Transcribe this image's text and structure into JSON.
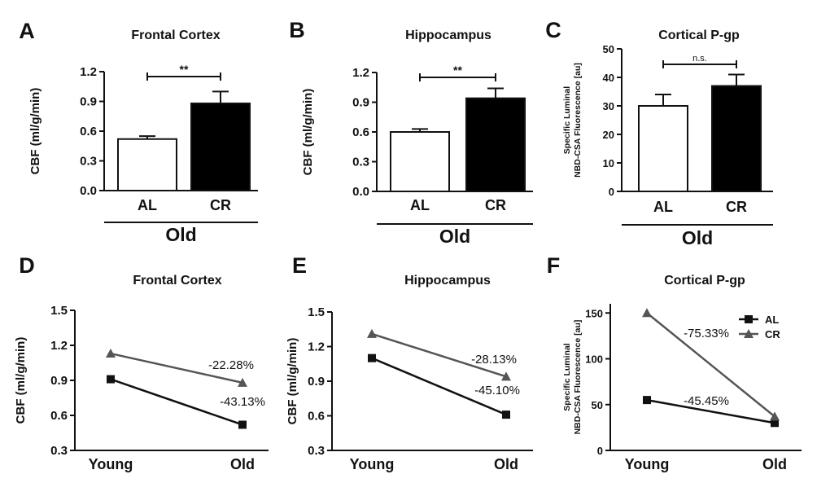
{
  "figure": {
    "panel_labels": [
      "A",
      "B",
      "C",
      "D",
      "E",
      "F"
    ]
  },
  "chart_data": [
    {
      "panel": "A",
      "type": "bar",
      "title": "Frontal Cortex",
      "xlabel": "",
      "ylabel": "CBF (ml/g/min)",
      "ylim": [
        0,
        1.2
      ],
      "yticks": [
        "0.0",
        "0.3",
        "0.6",
        "0.9",
        "1.2"
      ],
      "categories": [
        "AL",
        "CR"
      ],
      "values": [
        0.52,
        0.88
      ],
      "errors": [
        0.03,
        0.12
      ],
      "colors": [
        "#ffffff",
        "#000000"
      ],
      "group_label": "Old",
      "significance": "**"
    },
    {
      "panel": "B",
      "type": "bar",
      "title": "Hippocampus",
      "xlabel": "",
      "ylabel": "CBF (ml/g/min)",
      "ylim": [
        0,
        1.2
      ],
      "yticks": [
        "0.0",
        "0.3",
        "0.6",
        "0.9",
        "1.2"
      ],
      "categories": [
        "AL",
        "CR"
      ],
      "values": [
        0.6,
        0.94
      ],
      "errors": [
        0.03,
        0.1
      ],
      "colors": [
        "#ffffff",
        "#000000"
      ],
      "group_label": "Old",
      "significance": "**"
    },
    {
      "panel": "C",
      "type": "bar",
      "title": "Cortical P-gp",
      "xlabel": "",
      "ylabel_lines": [
        "Specific Luminal",
        "NBD-CSA Fluorescence [au]"
      ],
      "ylim": [
        0,
        50
      ],
      "yticks": [
        "0",
        "10",
        "20",
        "30",
        "40",
        "50"
      ],
      "categories": [
        "AL",
        "CR"
      ],
      "values": [
        30,
        37
      ],
      "errors": [
        4,
        4
      ],
      "colors": [
        "#ffffff",
        "#000000"
      ],
      "group_label": "Old",
      "significance": "n.s."
    },
    {
      "panel": "D",
      "type": "line",
      "title": "Frontal Cortex",
      "xlabel": "",
      "ylabel": "CBF (ml/g/min)",
      "ylim": [
        0.3,
        1.5
      ],
      "yticks": [
        "0.3",
        "0.6",
        "0.9",
        "1.2",
        "1.5"
      ],
      "x": [
        "Young",
        "Old"
      ],
      "series": [
        {
          "name": "AL",
          "values": [
            0.91,
            0.52
          ],
          "color": "#111111",
          "marker": "square",
          "annotation": "-43.13%"
        },
        {
          "name": "CR",
          "values": [
            1.13,
            0.88
          ],
          "color": "#555555",
          "marker": "triangle",
          "annotation": "-22.28%"
        }
      ]
    },
    {
      "panel": "E",
      "type": "line",
      "title": "Hippocampus",
      "xlabel": "",
      "ylabel": "CBF (ml/g/min)",
      "ylim": [
        0.3,
        1.5
      ],
      "yticks": [
        "0.3",
        "0.6",
        "0.9",
        "1.2",
        "1.5"
      ],
      "x": [
        "Young",
        "Old"
      ],
      "series": [
        {
          "name": "AL",
          "values": [
            1.1,
            0.61
          ],
          "color": "#111111",
          "marker": "square",
          "annotation": "-45.10%"
        },
        {
          "name": "CR",
          "values": [
            1.31,
            0.94
          ],
          "color": "#555555",
          "marker": "triangle",
          "annotation": "-28.13%"
        }
      ]
    },
    {
      "panel": "F",
      "type": "line",
      "title": "Cortical P-gp",
      "xlabel": "",
      "ylabel_lines": [
        "Specific Luminal",
        "NBD-CSA Fluorescence [au]"
      ],
      "ylim": [
        0,
        160
      ],
      "yticks": [
        "0",
        "50",
        "100",
        "150"
      ],
      "x": [
        "Young",
        "Old"
      ],
      "series": [
        {
          "name": "AL",
          "values": [
            55,
            30
          ],
          "color": "#111111",
          "marker": "square",
          "annotation": "-45.45%"
        },
        {
          "name": "CR",
          "values": [
            150,
            37
          ],
          "color": "#555555",
          "marker": "triangle",
          "annotation": "-75.33%"
        }
      ],
      "legend": [
        "AL",
        "CR"
      ]
    }
  ]
}
